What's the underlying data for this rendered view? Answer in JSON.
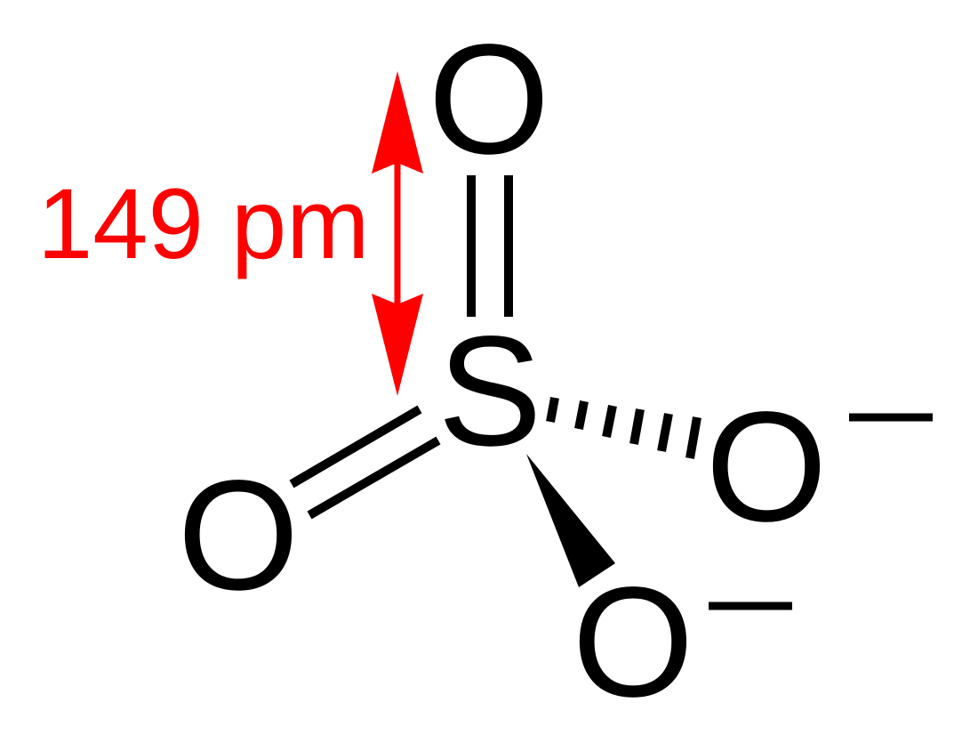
{
  "atoms": {
    "sulfur": "S",
    "oxygen_top": "O",
    "oxygen_left": "O",
    "oxygen_right": "O",
    "oxygen_bottom": "O"
  },
  "charges": {
    "oxygen_right": "negative",
    "oxygen_bottom": "negative"
  },
  "bonds": [
    {
      "from": "sulfur",
      "to": "oxygen_top",
      "type": "double"
    },
    {
      "from": "sulfur",
      "to": "oxygen_left",
      "type": "double"
    },
    {
      "from": "sulfur",
      "to": "oxygen_right",
      "type": "single-hashed"
    },
    {
      "from": "sulfur",
      "to": "oxygen_bottom",
      "type": "single-wedge"
    }
  ],
  "annotation": {
    "label": "149 pm",
    "color": "#ff0000"
  },
  "colors": {
    "structure": "#000000",
    "annotation": "#ff0000"
  }
}
